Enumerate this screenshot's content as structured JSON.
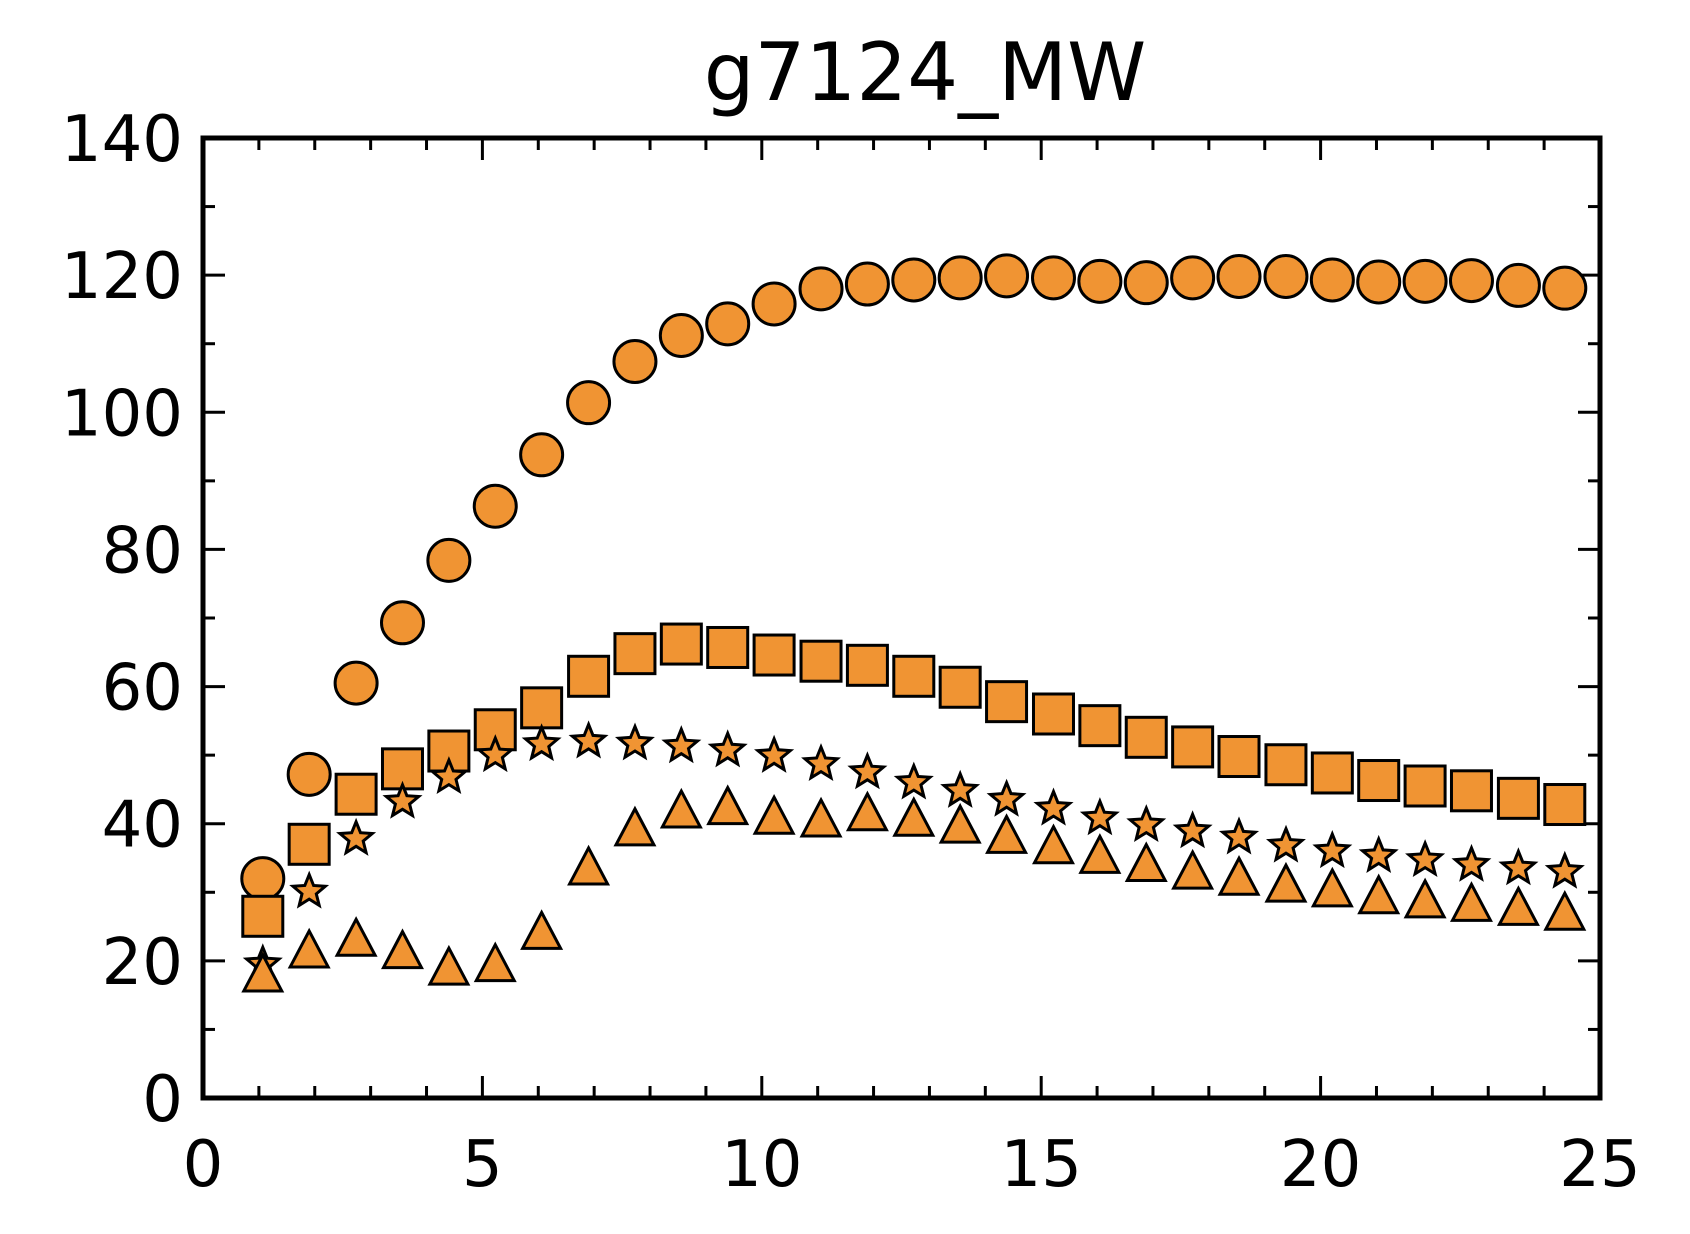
{
  "chart_data": {
    "type": "scatter",
    "title": "g7124_MW",
    "xlabel": "",
    "ylabel": "",
    "xlim": [
      0,
      25
    ],
    "ylim": [
      0,
      140
    ],
    "x_ticks": [
      0,
      5,
      10,
      15,
      20,
      25
    ],
    "y_ticks": [
      0,
      20,
      40,
      60,
      80,
      100,
      120,
      140
    ],
    "grid": false,
    "colors": {
      "marker_fill": "#f09433",
      "marker_edge": "#000000",
      "axes": "#000000"
    },
    "x": [
      1.07,
      1.9,
      2.74,
      3.57,
      4.4,
      5.23,
      6.06,
      6.9,
      7.73,
      8.56,
      9.39,
      10.22,
      11.06,
      11.89,
      12.72,
      13.55,
      14.38,
      15.22,
      16.05,
      16.88,
      17.71,
      18.54,
      19.38,
      20.21,
      21.04,
      21.87,
      22.7,
      23.54,
      24.37
    ],
    "series": [
      {
        "marker": "circle",
        "values": [
          32.0,
          47.2,
          60.5,
          69.3,
          78.4,
          86.3,
          93.8,
          101.4,
          107.4,
          111.2,
          112.9,
          115.8,
          118.0,
          118.7,
          119.3,
          119.6,
          119.9,
          119.6,
          119.1,
          118.9,
          119.6,
          119.8,
          119.8,
          119.3,
          119.0,
          119.1,
          119.2,
          118.5,
          118.1
        ]
      },
      {
        "marker": "square",
        "values": [
          26.5,
          37.0,
          44.3,
          48.0,
          50.6,
          53.7,
          56.9,
          61.5,
          64.8,
          66.2,
          65.7,
          64.6,
          63.7,
          63.1,
          61.5,
          59.9,
          57.8,
          56.0,
          54.3,
          52.6,
          51.2,
          49.8,
          48.6,
          47.4,
          46.3,
          45.5,
          44.8,
          43.7,
          42.8
        ]
      },
      {
        "marker": "star",
        "values": [
          19.5,
          30.1,
          37.8,
          43.2,
          46.8,
          50.0,
          51.6,
          52.0,
          51.7,
          51.3,
          50.7,
          49.9,
          48.7,
          47.5,
          46.0,
          44.8,
          43.5,
          42.2,
          40.8,
          39.8,
          38.9,
          38.0,
          36.8,
          36.0,
          35.3,
          34.7,
          34.0,
          33.5,
          33.0
        ]
      },
      {
        "marker": "triangle",
        "values": [
          17.8,
          21.3,
          23.0,
          21.2,
          18.8,
          19.3,
          24.0,
          33.4,
          39.1,
          41.7,
          42.2,
          40.8,
          40.4,
          41.3,
          40.5,
          39.5,
          38.0,
          36.5,
          35.1,
          33.9,
          32.8,
          31.9,
          30.9,
          30.2,
          29.2,
          28.6,
          28.1,
          27.5,
          26.8
        ]
      }
    ]
  }
}
